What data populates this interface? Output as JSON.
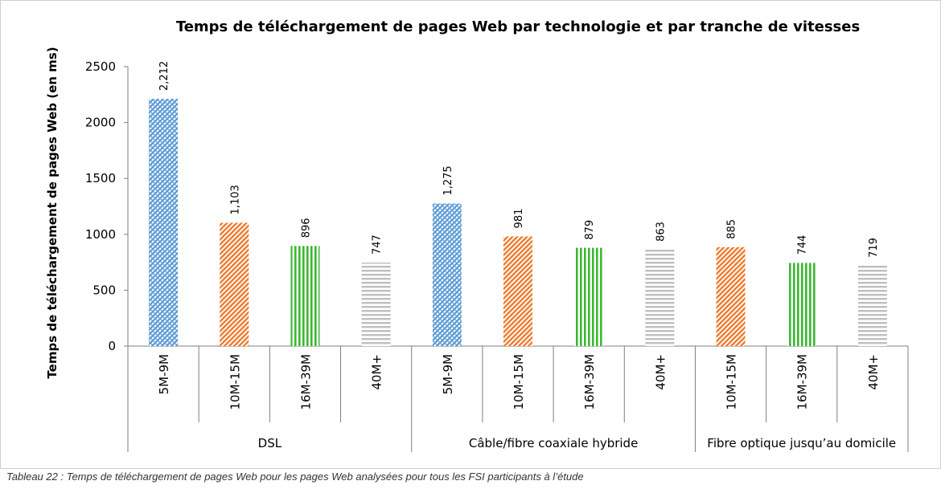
{
  "caption": "Tableau 22 : Temps de téléchargement de pages Web pour les pages Web analysées pour tous les FSI participants à l’étude",
  "chart_data": {
    "type": "bar",
    "title": "Temps de téléchargement de pages Web par technologie et par tranche de vitesses",
    "ylabel": "Temps de téléchargement de pages Web (en ms)",
    "xlabel": "",
    "ylim": [
      0,
      2500
    ],
    "yticks": [
      "0",
      "500",
      "1000",
      "1500",
      "2000",
      "2500"
    ],
    "grid": false,
    "legend": "none",
    "groups": [
      {
        "name": "DSL",
        "bars": [
          {
            "category": "5M-9M",
            "value": 2212,
            "label": "2,212",
            "pattern": "blue"
          },
          {
            "category": "10M-15M",
            "value": 1103,
            "label": "1,103",
            "pattern": "orange"
          },
          {
            "category": "16M-39M",
            "value": 896,
            "label": "896",
            "pattern": "green"
          },
          {
            "category": "40M+",
            "value": 747,
            "label": "747",
            "pattern": "gray"
          }
        ]
      },
      {
        "name": "Câble/fibre coaxiale hybride",
        "bars": [
          {
            "category": "5M-9M",
            "value": 1275,
            "label": "1,275",
            "pattern": "blue"
          },
          {
            "category": "10M-15M",
            "value": 981,
            "label": "981",
            "pattern": "orange"
          },
          {
            "category": "16M-39M",
            "value": 879,
            "label": "879",
            "pattern": "green"
          },
          {
            "category": "40M+",
            "value": 863,
            "label": "863",
            "pattern": "gray"
          }
        ]
      },
      {
        "name": "Fibre optique jusqu’au domicile",
        "bars": [
          {
            "category": "10M-15M",
            "value": 885,
            "label": "885",
            "pattern": "orange"
          },
          {
            "category": "16M-39M",
            "value": 744,
            "label": "744",
            "pattern": "green"
          },
          {
            "category": "40M+",
            "value": 719,
            "label": "719",
            "pattern": "gray"
          }
        ]
      }
    ],
    "colors": {
      "blue": "#5b9bd5",
      "orange": "#ed7d31",
      "green": "#3cb832",
      "gray": "#bfbfbf"
    }
  }
}
